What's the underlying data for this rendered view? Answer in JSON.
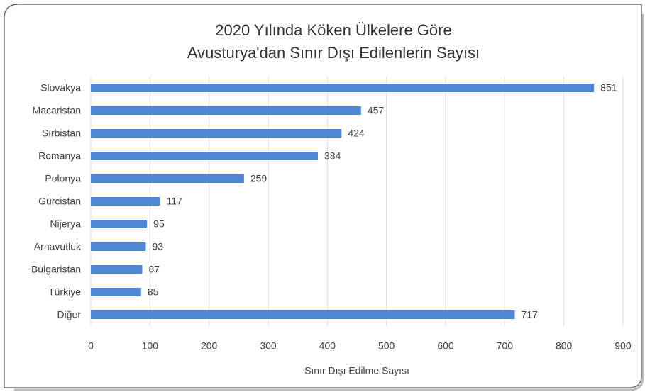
{
  "chart_data": {
    "type": "bar",
    "orientation": "horizontal",
    "title": [
      "2020 Yılında Köken Ülkelere Göre",
      "Avusturya'dan Sınır Dışı Edilenlerin Sayısı"
    ],
    "xlabel": "Sınır Dışı Edilme Sayısı",
    "categories": [
      "Slovakya",
      "Macaristan",
      "Sırbistan",
      "Romanya",
      "Polonya",
      "Gürcistan",
      "Nijerya",
      "Arnavutluk",
      "Bulgaristan",
      "Türkiye",
      "Diğer"
    ],
    "values": [
      851,
      457,
      424,
      384,
      259,
      117,
      95,
      93,
      87,
      85,
      717
    ],
    "color": "#4f86d6",
    "xlim": [
      0,
      900
    ],
    "xticks": [
      0,
      100,
      200,
      300,
      400,
      500,
      600,
      700,
      800,
      900
    ],
    "grid": true
  }
}
